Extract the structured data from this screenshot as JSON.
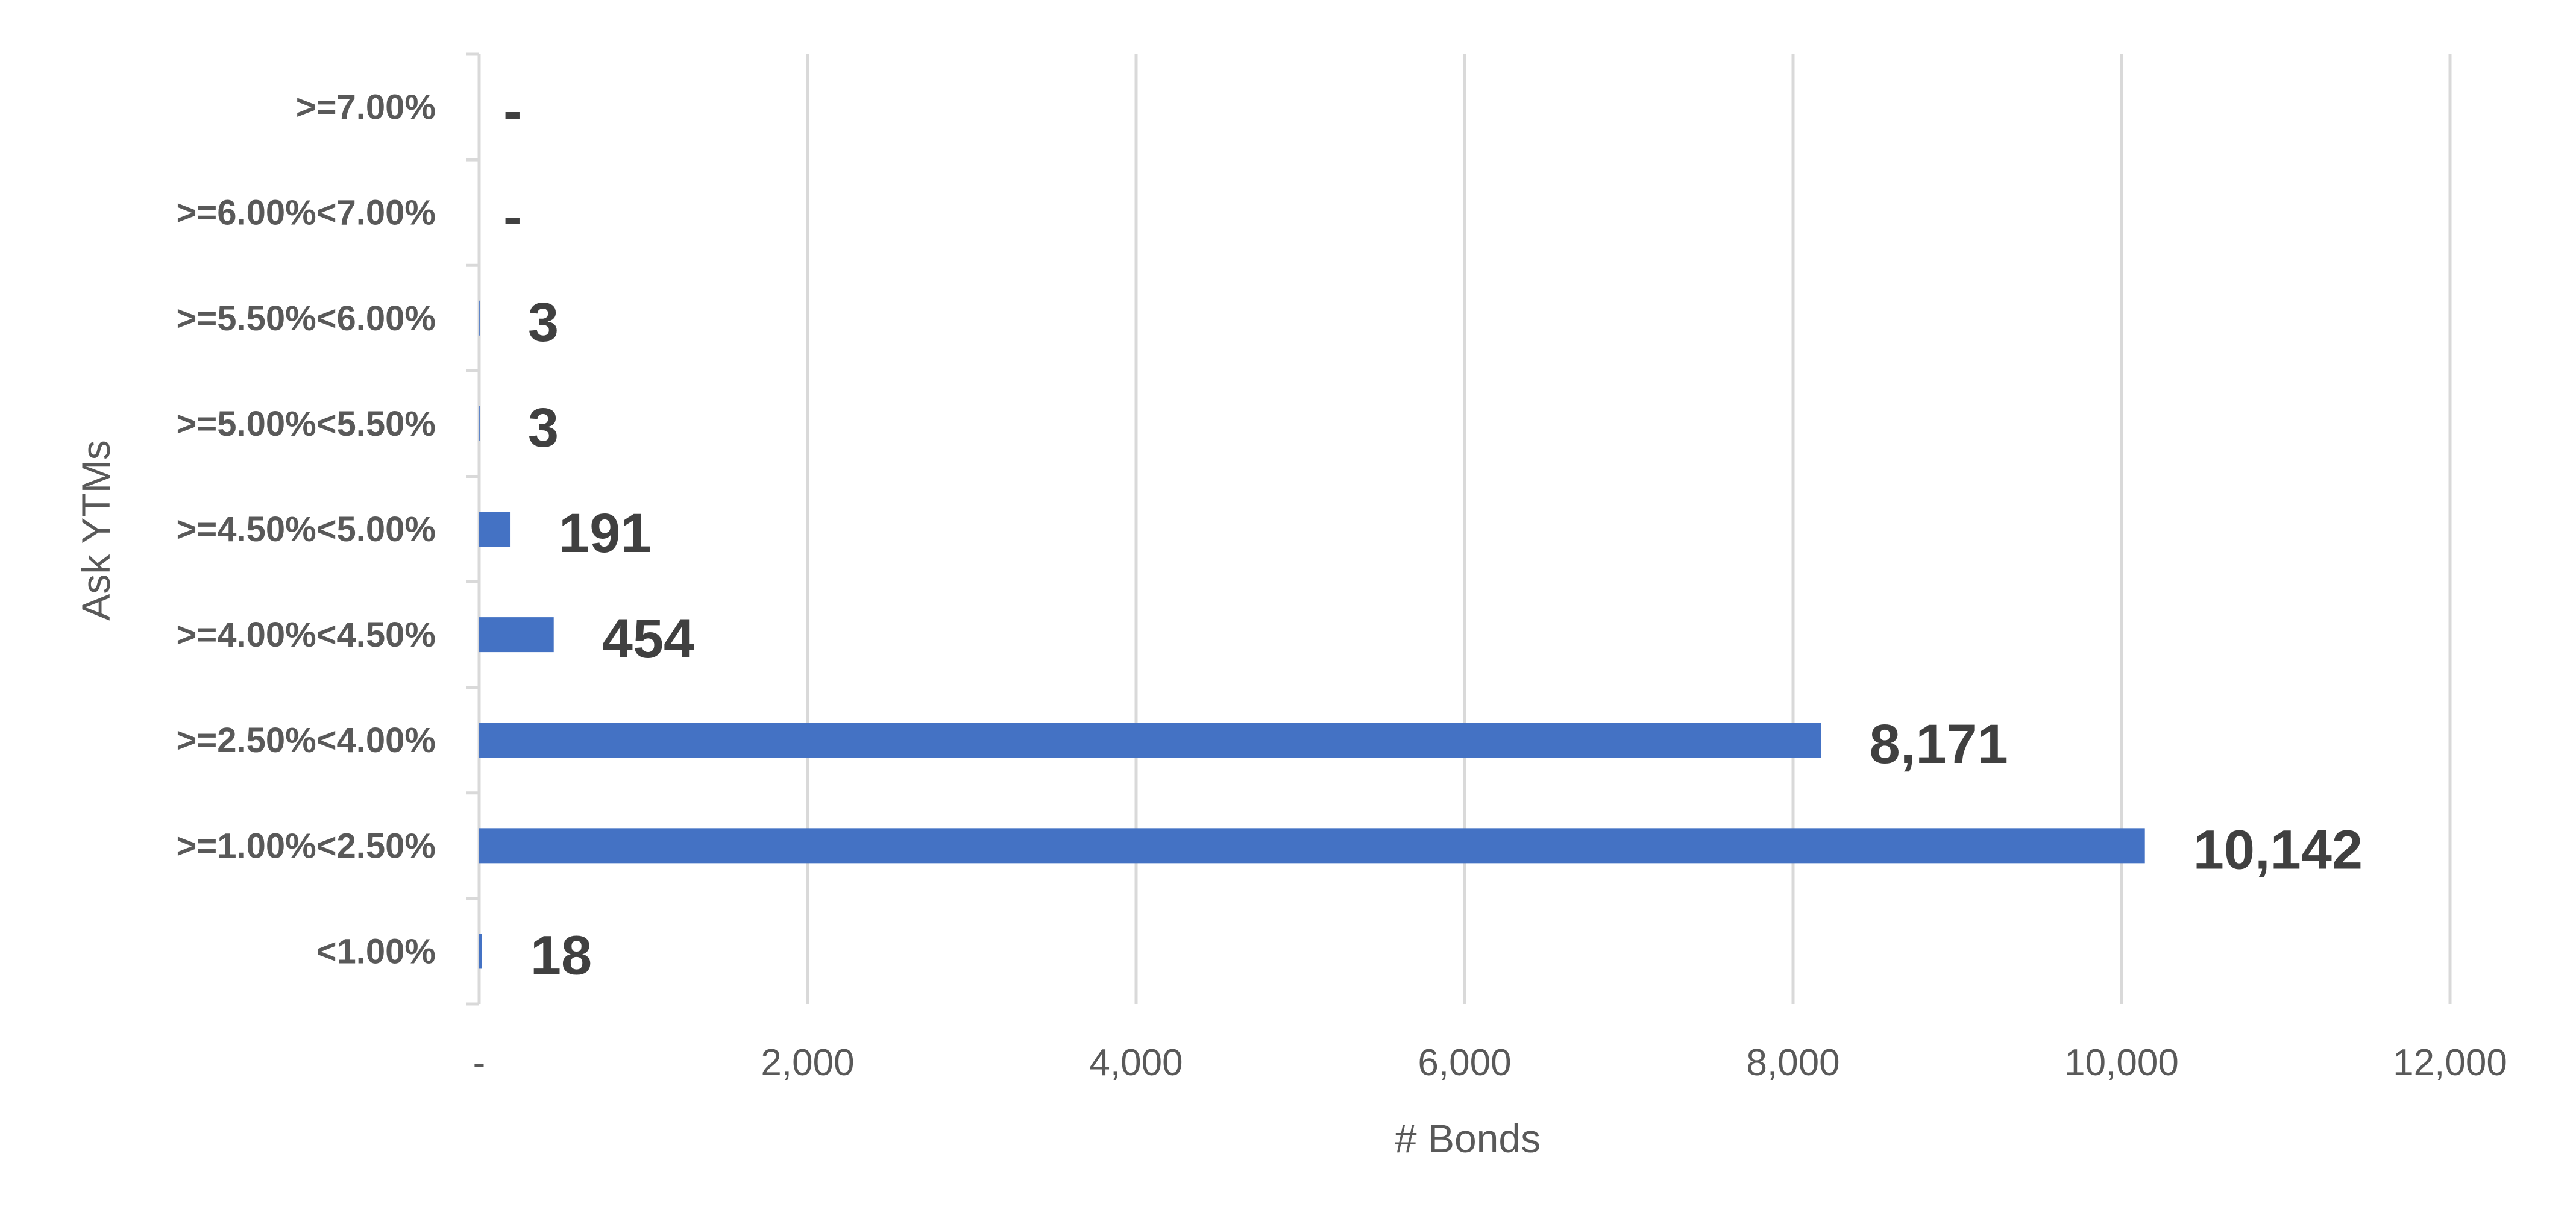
{
  "chart_data": {
    "type": "bar",
    "orientation": "horizontal",
    "categories": [
      ">=7.00%",
      ">=6.00%<7.00%",
      ">=5.50%<6.00%",
      ">=5.00%<5.50%",
      ">=4.50%<5.00%",
      ">=4.00%<4.50%",
      ">=2.50%<4.00%",
      ">=1.00%<2.50%",
      "<1.00%"
    ],
    "values": [
      0,
      0,
      3,
      3,
      191,
      454,
      8171,
      10142,
      18
    ],
    "data_labels": [
      "-",
      "-",
      "3",
      "3",
      "191",
      "454",
      "8,171",
      "10,142",
      "18"
    ],
    "xlabel": "# Bonds",
    "ylabel": "Ask YTMs",
    "xlim": [
      0,
      12000
    ],
    "x_ticks": [
      0,
      2000,
      4000,
      6000,
      8000,
      10000,
      12000
    ],
    "x_tick_labels": [
      "-",
      "2,000",
      "4,000",
      "6,000",
      "8,000",
      "10,000",
      "12,000"
    ],
    "grid": "vertical",
    "legend": "none",
    "bar_color": "#4472C4"
  }
}
